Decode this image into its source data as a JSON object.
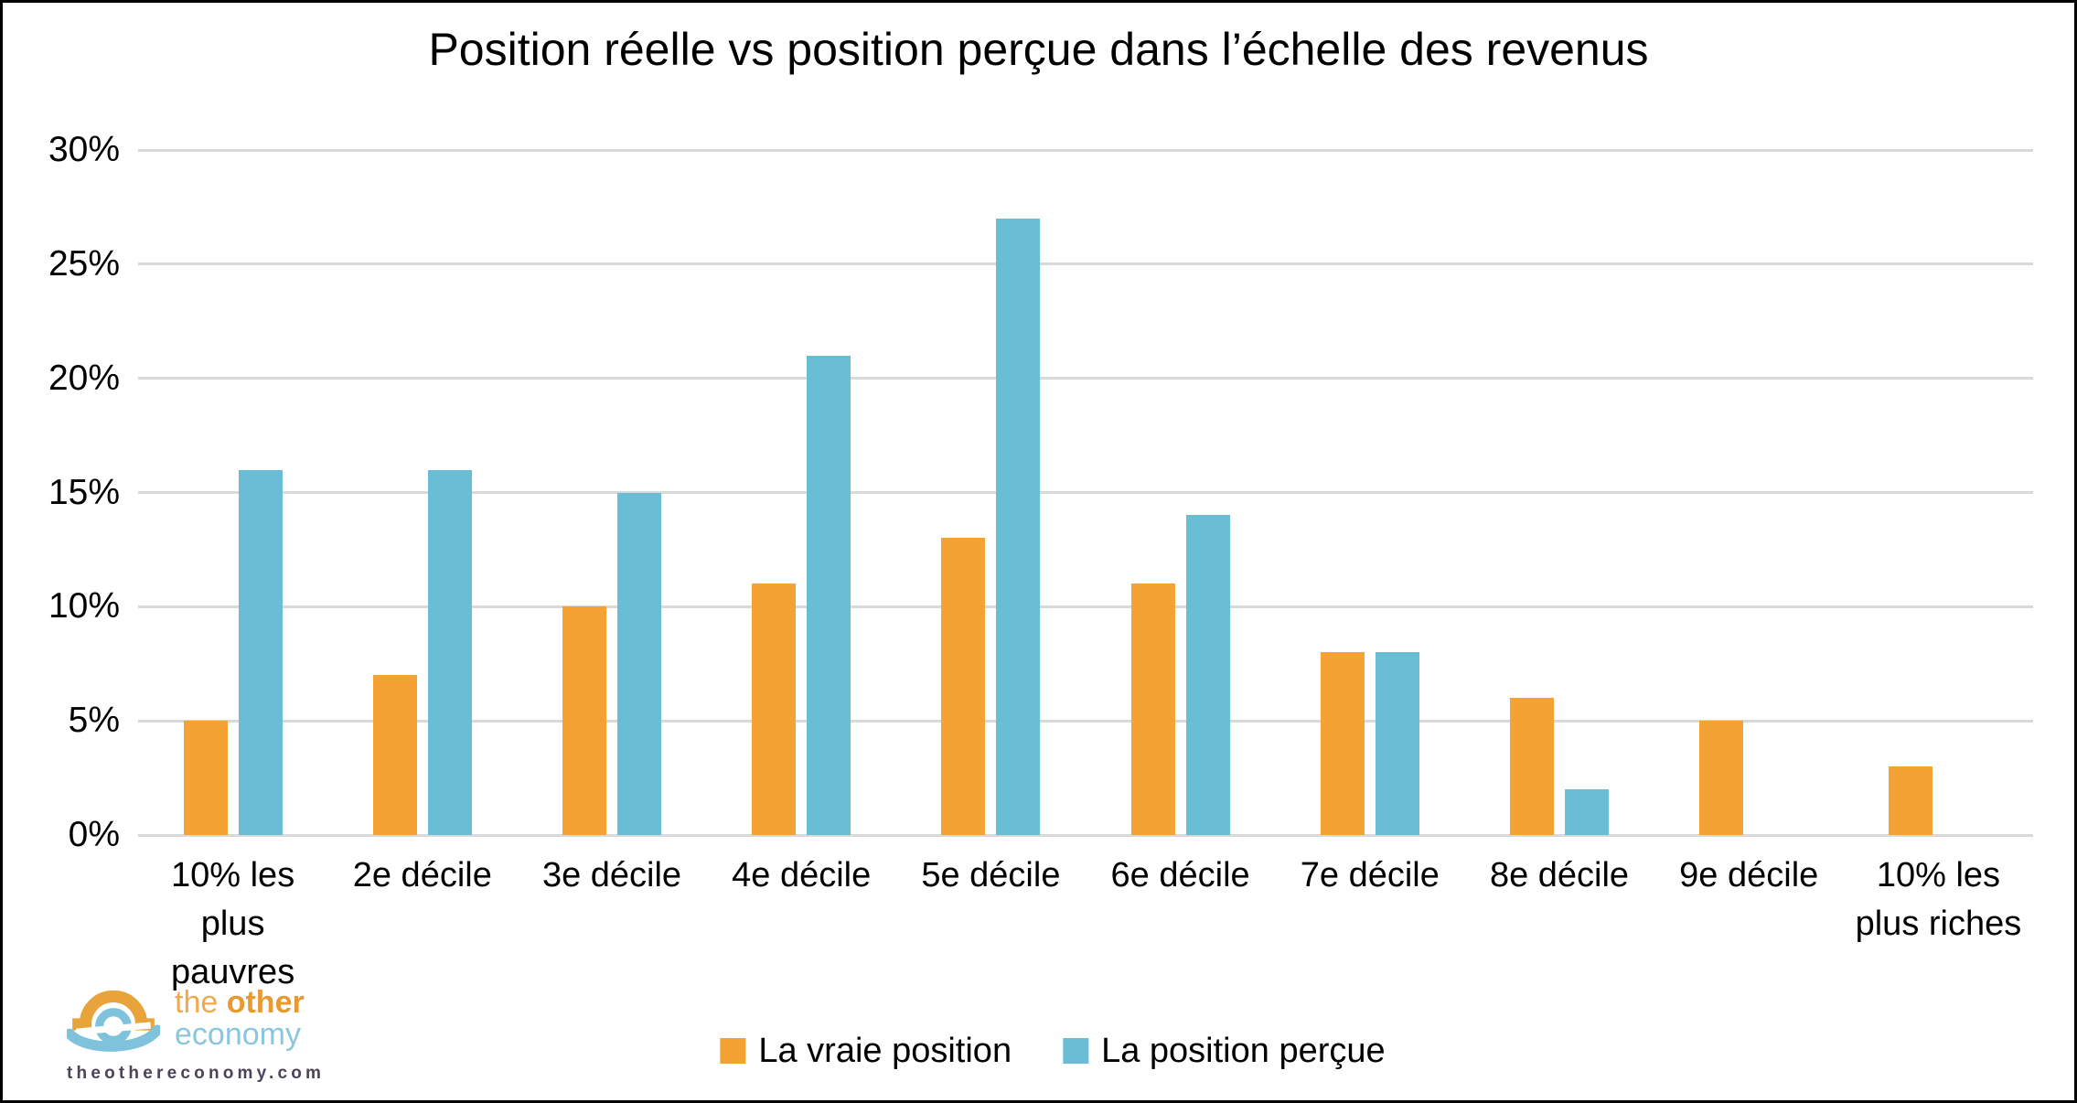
{
  "chart_data": {
    "type": "bar",
    "title": "Position réelle vs position perçue dans l’échelle des revenus",
    "categories": [
      "10% les\nplus\npauvres",
      "2e décile",
      "3e décile",
      "4e décile",
      "5e décile",
      "6e décile",
      "7e décile",
      "8e décile",
      "9e décile",
      "10% les\nplus riches"
    ],
    "series": [
      {
        "name": "La vraie position",
        "color": "#F4A233",
        "values": [
          5,
          7,
          10,
          11,
          13,
          11,
          8,
          6,
          5,
          3
        ]
      },
      {
        "name": "La position perçue",
        "color": "#69BDD5",
        "values": [
          16,
          16,
          15,
          21,
          27,
          14,
          8,
          2,
          0,
          0
        ]
      }
    ],
    "xlabel": "",
    "ylabel": "",
    "ylim": [
      0,
      30
    ],
    "ytick_values": [
      0,
      5,
      10,
      15,
      20,
      25,
      30
    ],
    "ytick_labels": [
      "0%",
      "5%",
      "10%",
      "15%",
      "20%",
      "25%",
      "30%"
    ],
    "grid": true,
    "gridline_color": "#D9D9D9",
    "legend_position": "bottom"
  },
  "logo": {
    "word1": "the ",
    "word2": "other",
    "word3": "economy",
    "website": "theothereconomy.com"
  }
}
